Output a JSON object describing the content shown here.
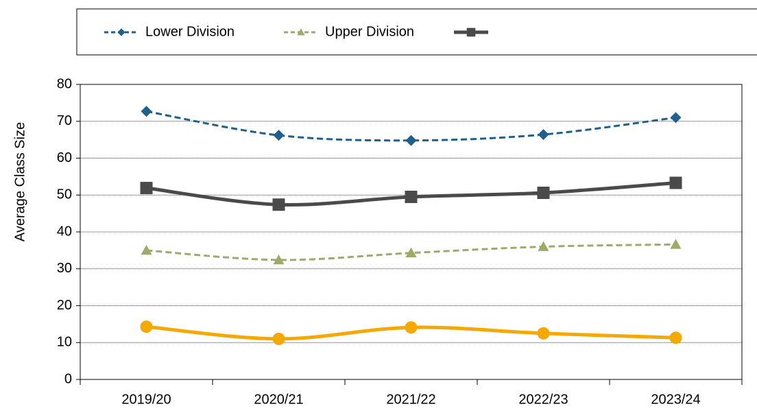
{
  "chart_data": {
    "type": "line",
    "y_label": "Average Class Size",
    "categories": [
      "2019/20",
      "2020/21",
      "2021/22",
      "2022/23",
      "2023/24"
    ],
    "series": [
      {
        "name": "Lower Division",
        "color": "#1f5f8b",
        "marker": "diamond",
        "dash": true,
        "width": 3,
        "in_legend": true,
        "values": [
          72.7,
          66.2,
          64.8,
          66.4,
          71.0
        ]
      },
      {
        "name": "Upper Division",
        "color": "#9bab6a",
        "marker": "triangle",
        "dash": true,
        "width": 3,
        "in_legend": true,
        "values": [
          35.0,
          32.4,
          34.3,
          36.0,
          36.6
        ]
      },
      {
        "color": "#4a4a4a",
        "marker": "square",
        "dash": false,
        "width": 5,
        "in_legend": true,
        "values": [
          51.9,
          47.4,
          49.5,
          50.6,
          53.3
        ]
      },
      {
        "color": "#f5a800",
        "marker": "circle",
        "dash": false,
        "width": 5,
        "in_legend": false,
        "values": [
          14.3,
          11.0,
          14.1,
          12.5,
          11.3
        ]
      }
    ],
    "ylim": [
      0,
      80
    ],
    "yticks": [
      0,
      10,
      20,
      30,
      40,
      50,
      60,
      70,
      80
    ],
    "grid": true,
    "smooth": true,
    "legend": "top"
  }
}
